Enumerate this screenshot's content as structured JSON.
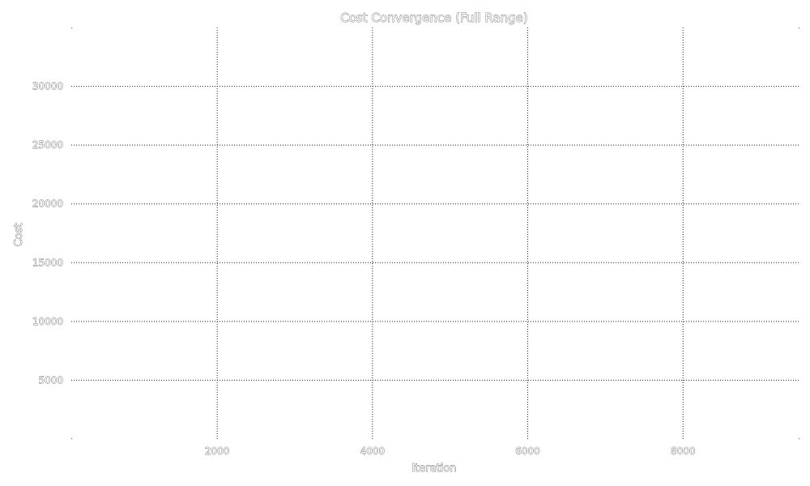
{
  "chart_data": {
    "type": "line",
    "title": "Cost Convergence (Full Range)",
    "xlabel": "Iteration",
    "ylabel": "Cost",
    "xlim": [
      120,
      9500
    ],
    "ylim": [
      0,
      35000
    ],
    "xticks": [
      2000,
      4000,
      6000,
      8000
    ],
    "yticks": [
      5000,
      10000,
      15000,
      20000,
      25000,
      30000
    ],
    "xtick_labels": [
      "2000",
      "4000",
      "6000",
      "8000"
    ],
    "ytick_labels": [
      "5000",
      "10000",
      "15000",
      "20000",
      "25000",
      "30000"
    ],
    "grid": true,
    "legend": "none",
    "series": [],
    "colors": {
      "grid": "#1f1f1f",
      "text_fill": "#ffffff",
      "text_outline": "#4a4a4a"
    }
  }
}
